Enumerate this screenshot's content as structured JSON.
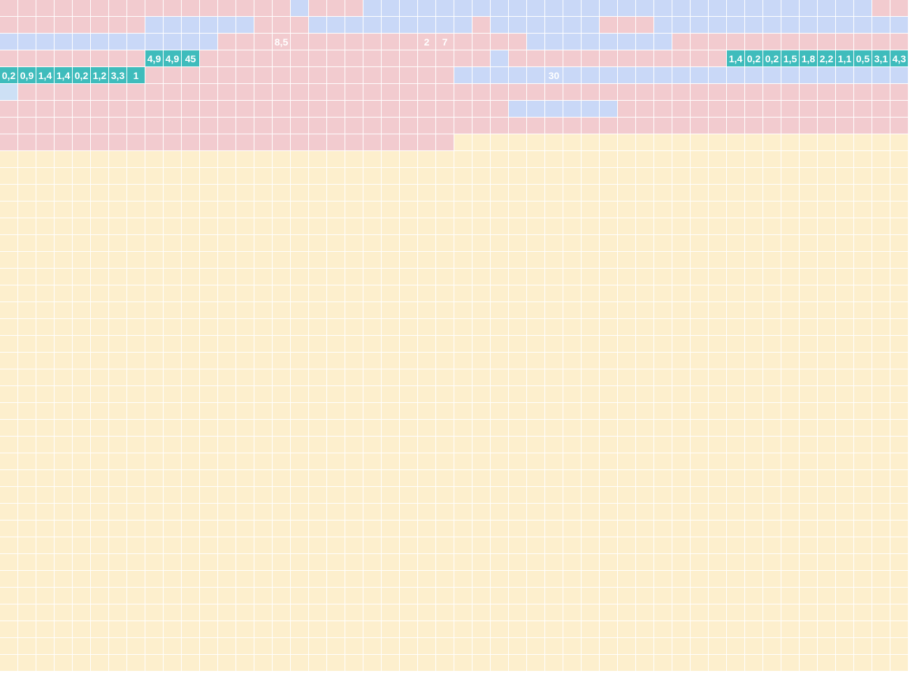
{
  "palette": {
    "R": "#f2cbcf",
    "B": "#c9d8f7",
    "L": "#cde0f5",
    "Y": "#fdefcd",
    "T": "#3fbcbc",
    "W": "#ffffff"
  },
  "grid": {
    "cols": 50,
    "rows": 40,
    "fill_color_key": "Y",
    "rows_data": [
      "RRRRRRRRRRRRRRRRBRRRBBBBBBBBBBBBBBBBBBBBBBBBBBBBRR",
      "RRRRRRRRBBBBBBRRRBBBBBBBBBRBBBBBBRRRBBBBBBBBBBBBBB",
      "BBBBBBBBBBBBRRRRRRRRRRRRRRRRRBBBBBBBBRRRRRRRRRRRRR",
      "RRRRRRRRTTTRRRRRRRRRRRRRRRRBRRRRRRRRRRRRTTTTTTTTTT",
      "TTTTTTTTRRRRRRRRRRRRRRRRRBBBBBBBBBBBBBBBBBBBBBBBBB",
      "LRRRRRRRRRRRRRRRRRRRRRRRRRRRRRRRRRRRRRRRRRRRRRRRRR",
      "RRRRRRRRRRRRRRRRRRRRRRRRRRRRBBBBBBRRRRRRRRRRRRRRRR",
      "RRRRRRRRRRRRRRRRRRRRRRRRRRRRRRRRRRRRRRRRRRRRRRRRRR",
      "RRRRRRRRRRRRRRRRRRRRRRRRRYYYYYYYYYYYYYYYYYYYYYYYYY"
    ]
  },
  "labeled_cells": [
    {
      "row": 2,
      "col": 15,
      "text": "8,5"
    },
    {
      "row": 2,
      "col": 23,
      "text": "2"
    },
    {
      "row": 2,
      "col": 24,
      "text": "7"
    },
    {
      "row": 3,
      "col": 8,
      "text": "4,9"
    },
    {
      "row": 3,
      "col": 9,
      "text": "4,9"
    },
    {
      "row": 3,
      "col": 10,
      "text": "45"
    },
    {
      "row": 3,
      "col": 40,
      "text": "1,4"
    },
    {
      "row": 3,
      "col": 41,
      "text": "0,2"
    },
    {
      "row": 3,
      "col": 42,
      "text": "0,2"
    },
    {
      "row": 3,
      "col": 43,
      "text": "1,5"
    },
    {
      "row": 3,
      "col": 44,
      "text": "1,8"
    },
    {
      "row": 3,
      "col": 45,
      "text": "2,2"
    },
    {
      "row": 3,
      "col": 46,
      "text": "1,1"
    },
    {
      "row": 3,
      "col": 47,
      "text": "0,5"
    },
    {
      "row": 3,
      "col": 48,
      "text": "3,1"
    },
    {
      "row": 3,
      "col": 49,
      "text": "4,3"
    },
    {
      "row": 4,
      "col": 0,
      "text": "0,2"
    },
    {
      "row": 4,
      "col": 1,
      "text": "0,9"
    },
    {
      "row": 4,
      "col": 2,
      "text": "1,4"
    },
    {
      "row": 4,
      "col": 3,
      "text": "1,4"
    },
    {
      "row": 4,
      "col": 4,
      "text": "0,2"
    },
    {
      "row": 4,
      "col": 5,
      "text": "1,2"
    },
    {
      "row": 4,
      "col": 6,
      "text": "3,3"
    },
    {
      "row": 4,
      "col": 7,
      "text": "1"
    },
    {
      "row": 4,
      "col": 30,
      "text": "30"
    }
  ]
}
